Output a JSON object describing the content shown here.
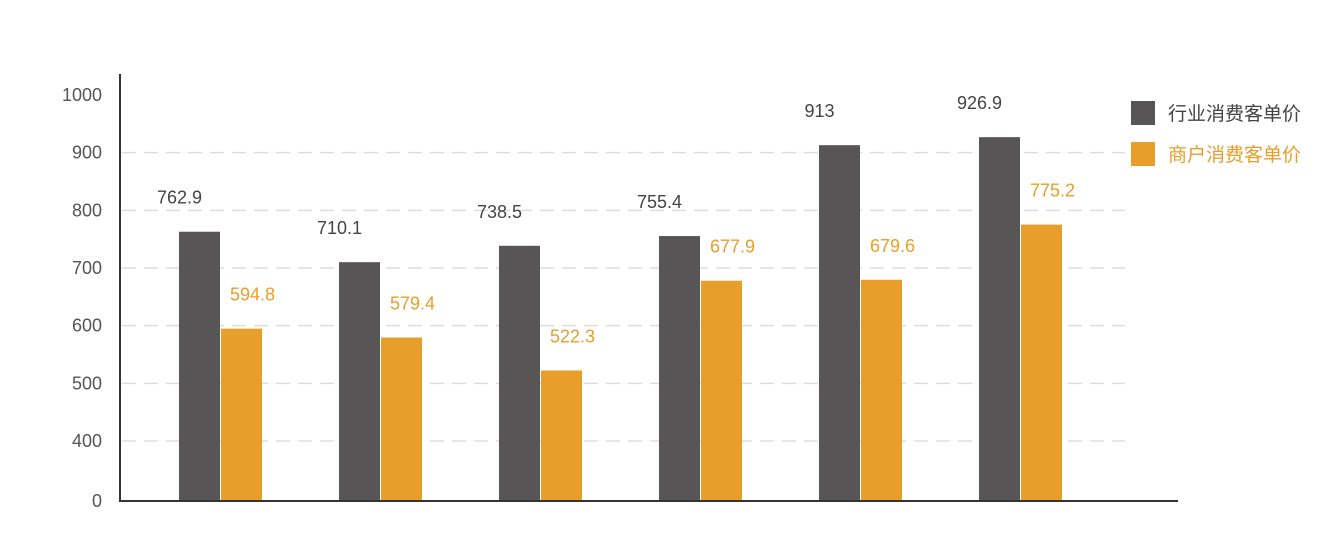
{
  "chart_data": {
    "type": "bar",
    "categories": [
      "",
      "",
      "",
      "",
      "",
      ""
    ],
    "series": [
      {
        "name": "行业消费客单价",
        "color": "#575556",
        "label_color": "#444444",
        "values": [
          762.9,
          710.1,
          738.5,
          755.4,
          913,
          926.9
        ],
        "labels": [
          "762.9",
          "710.1",
          "738.5",
          "755.4",
          "913",
          "926.9"
        ]
      },
      {
        "name": "商户消费客单价",
        "color": "#E89E2A",
        "label_color": "#E89E2A",
        "values": [
          594.8,
          579.4,
          522.3,
          677.9,
          679.6,
          775.2
        ],
        "labels": [
          "594.8",
          "579.4",
          "522.3",
          "677.9",
          "679.6",
          "775.2"
        ]
      }
    ],
    "y_ticks": [
      "0",
      "400",
      "500",
      "600",
      "700",
      "800",
      "900",
      "1000"
    ],
    "axis_note": "y-axis is non-linear below 400 (0 and 400 share the bottom region)",
    "gridlines": true,
    "legend_position": "right",
    "title": "",
    "xlabel": "",
    "ylabel": ""
  }
}
